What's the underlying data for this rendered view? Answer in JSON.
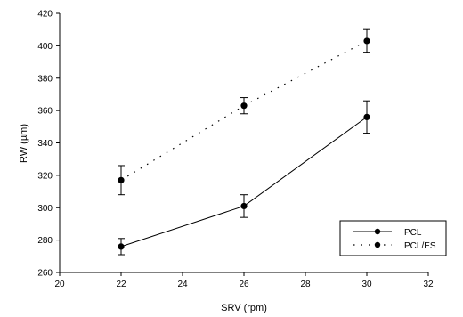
{
  "chart_data": {
    "type": "line",
    "xlabel": "SRV (rpm)",
    "ylabel": "RW (µm)",
    "xlim": [
      20,
      32
    ],
    "ylim": [
      260,
      420
    ],
    "xticks": [
      20,
      22,
      24,
      26,
      28,
      30,
      32
    ],
    "yticks": [
      260,
      280,
      300,
      320,
      340,
      360,
      380,
      400,
      420
    ],
    "grid": false,
    "legend_position": "bottom-right",
    "series": [
      {
        "name": "PCL",
        "line_style": "solid",
        "x": [
          22,
          26,
          30
        ],
        "y": [
          276,
          301,
          356
        ],
        "error": [
          5,
          7,
          10
        ]
      },
      {
        "name": "PCL/ES",
        "line_style": "dotted",
        "x": [
          22,
          26,
          30
        ],
        "y": [
          317,
          363,
          403
        ],
        "error": [
          9,
          5,
          7
        ]
      }
    ]
  }
}
